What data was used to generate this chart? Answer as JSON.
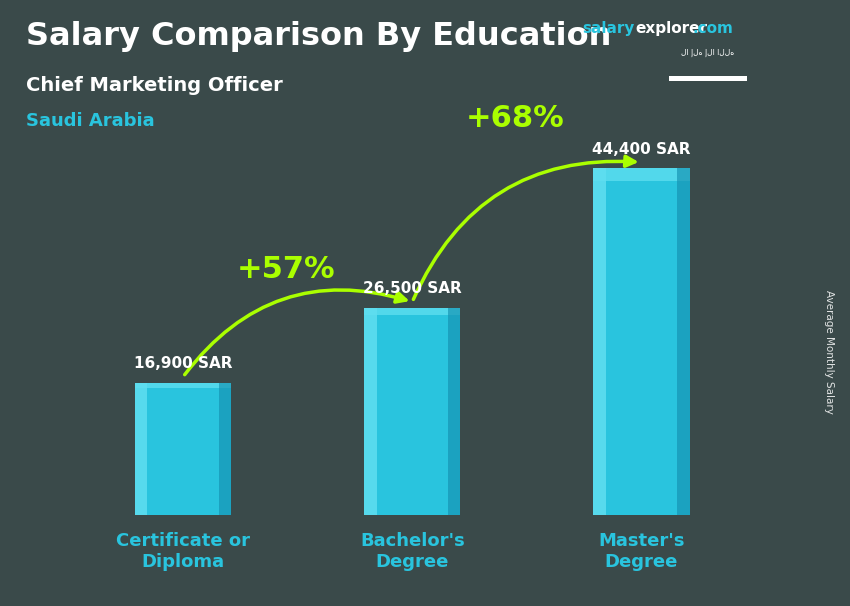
{
  "title_bold": "Salary Comparison By Education",
  "subtitle1": "Chief Marketing Officer",
  "subtitle2": "Saudi Arabia",
  "watermark_salary": "salary",
  "watermark_explorer": "explorer",
  "watermark_com": ".com",
  "ylabel_rotated": "Average Monthly Salary",
  "categories": [
    "Certificate or\nDiploma",
    "Bachelor's\nDegree",
    "Master's\nDegree"
  ],
  "values": [
    16900,
    26500,
    44400
  ],
  "value_labels": [
    "16,900 SAR",
    "26,500 SAR",
    "44,400 SAR"
  ],
  "pct_labels": [
    "+57%",
    "+68%"
  ],
  "bar_color_main": "#29c4de",
  "bar_color_highlight": "#60dff0",
  "bar_color_shadow": "#1490b0",
  "background_color": "#3a4a4a",
  "title_color": "#ffffff",
  "subtitle1_color": "#ffffff",
  "subtitle2_color": "#29c4de",
  "value_label_color": "#ffffff",
  "pct_color": "#aaff00",
  "arrow_color": "#aaff00",
  "xtick_color": "#29c4de",
  "watermark_salary_color": "#29c4de",
  "watermark_explorer_color": "#ffffff",
  "watermark_com_color": "#29c4de",
  "ylim": [
    0,
    52000
  ],
  "bar_width": 0.42,
  "title_fontsize": 23,
  "subtitle1_fontsize": 14,
  "subtitle2_fontsize": 13,
  "value_fontsize": 11,
  "pct_fontsize": 22,
  "xtick_fontsize": 13,
  "flag_color": "#006C35"
}
